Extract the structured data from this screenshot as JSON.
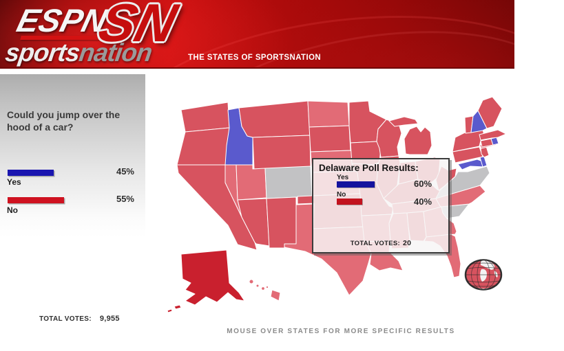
{
  "header": {
    "espn": "ESPN",
    "sn": "SN",
    "brand_sports": "sports",
    "brand_nation": "nation",
    "tagline": "THE STATES OF SPORTSNATION"
  },
  "sidebar": {
    "question": "Could you jump over the hood of a car?",
    "options": [
      {
        "label": "Yes",
        "pct": 45,
        "pct_label": "45%",
        "color": "#1a16b0"
      },
      {
        "label": "No",
        "pct": 55,
        "pct_label": "55%",
        "color": "#cf1220"
      }
    ],
    "total_votes_label": "TOTAL VOTES:",
    "total_votes": "9,955"
  },
  "tooltip": {
    "title": "Delaware Poll Results:",
    "options": [
      {
        "label": "Yes",
        "pct": 60,
        "pct_label": "60%",
        "color": "#14139e"
      },
      {
        "label": "No",
        "pct": 40,
        "pct_label": "40%",
        "color": "#c2131e"
      }
    ],
    "total_votes_label": "TOTAL VOTES:",
    "total_votes": "20"
  },
  "map": {
    "note": "MOUSE OVER STATES FOR MORE SPECIFIC RESULTS",
    "palette": {
      "red": "#d7535f",
      "red_dark": "#c9202e",
      "salmon": "#e26b76",
      "blue": "#5a5acd",
      "gray": "#c2c2c4"
    },
    "states": {
      "WA": "red",
      "OR": "red",
      "CA": "red",
      "ID": "blue",
      "NV": "salmon",
      "UT": "salmon",
      "MT": "red",
      "WY": "red",
      "CO": "gray",
      "AZ": "red",
      "NM": "red",
      "ND": "salmon",
      "SD": "red",
      "NE": "salmon",
      "KS": "salmon",
      "OK": "red",
      "TX": "salmon",
      "MN": "red",
      "IA": "red",
      "MO": "red",
      "AR": "salmon",
      "LA": "salmon",
      "WI": "red",
      "IL": "red",
      "MI": "red",
      "IN": "red",
      "OH": "red",
      "KY": "red",
      "TN": "salmon",
      "MS": "salmon",
      "AL": "red",
      "GA": "salmon",
      "FL": "salmon",
      "SC": "gray",
      "NC": "salmon",
      "VA": "gray",
      "WV": "red",
      "MD": "blue",
      "DE": "blue",
      "PA": "red",
      "NJ": "red",
      "NY": "red",
      "CT": "red",
      "RI": "blue",
      "MA": "red",
      "VT": "red",
      "NH": "blue",
      "ME": "red",
      "AK": "red_dark",
      "HI": "salmon"
    }
  }
}
